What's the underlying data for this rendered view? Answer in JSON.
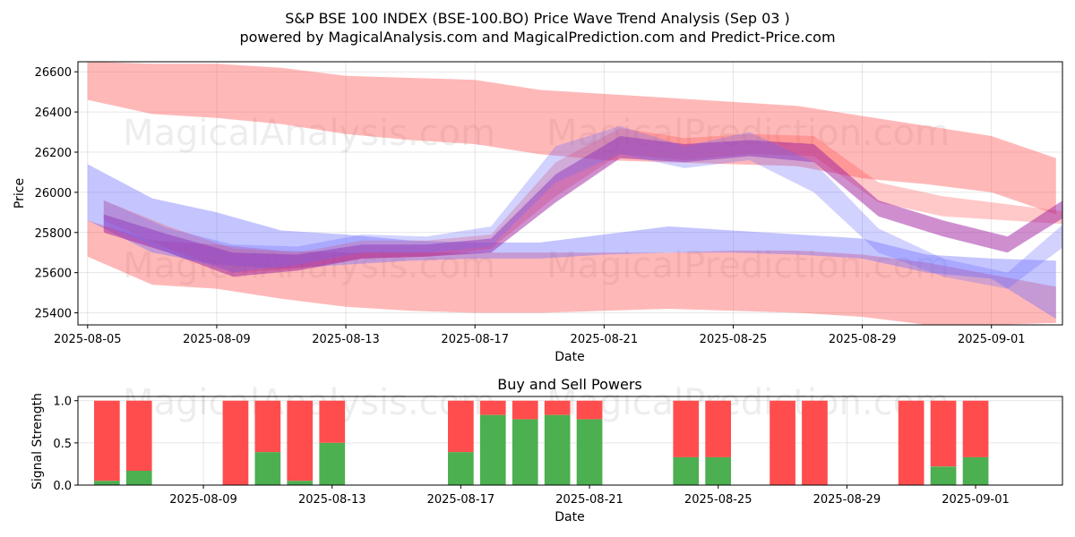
{
  "title_line1": "S&P BSE 100 INDEX (BSE-100.BO) Price Wave Trend Analysis (Sep 03 )",
  "title_line2": "powered by MagicalAnalysis.com and MagicalPrediction.com and Predict-Price.com",
  "watermarks": [
    "MagicalAnalysis.com",
    "MagicalPrediction.com"
  ],
  "colors": {
    "red": "#ff4d4d",
    "blue": "#6b6bff",
    "green": "#4caf50",
    "redband": "#ff9e9e"
  },
  "chart_data": [
    {
      "type": "area",
      "title": "",
      "xlabel": "Date",
      "ylabel": "Price",
      "ylim": [
        25340,
        26650
      ],
      "xlim": [
        -0.3,
        30.2
      ],
      "x_ticks": [
        0,
        4,
        8,
        12,
        16,
        20,
        24,
        28
      ],
      "x_tick_labels": [
        "2025-08-05",
        "2025-08-09",
        "2025-08-13",
        "2025-08-17",
        "2025-08-21",
        "2025-08-25",
        "2025-08-29",
        "2025-09-01"
      ],
      "y_ticks": [
        25400,
        25600,
        25800,
        26000,
        26200,
        26400,
        26600
      ],
      "grid": true,
      "series": [
        {
          "name": "upper red band",
          "color": "red",
          "opacity": 0.4,
          "x": [
            0,
            2,
            4,
            6,
            8,
            10,
            12,
            14,
            16,
            18,
            20,
            22,
            24,
            26,
            28,
            30
          ],
          "upper": [
            26650,
            26640,
            26640,
            26620,
            26580,
            26570,
            26560,
            26510,
            26490,
            26470,
            26450,
            26430,
            26380,
            26330,
            26280,
            26170
          ],
          "lower": [
            26460,
            26390,
            26370,
            26340,
            26290,
            26260,
            26240,
            26190,
            26160,
            26150,
            26140,
            26130,
            26070,
            26040,
            26000,
            25890
          ]
        },
        {
          "name": "lower red band",
          "color": "red",
          "opacity": 0.4,
          "x": [
            0,
            2,
            4,
            6,
            8,
            10,
            12,
            14,
            16,
            18,
            20,
            22,
            24,
            26,
            28,
            30
          ],
          "upper": [
            25860,
            25760,
            25740,
            25710,
            25700,
            25700,
            25700,
            25700,
            25700,
            25700,
            25710,
            25710,
            25690,
            25650,
            25590,
            25530
          ],
          "lower": [
            25680,
            25540,
            25520,
            25470,
            25430,
            25410,
            25400,
            25400,
            25410,
            25420,
            25410,
            25400,
            25380,
            25340,
            25340,
            25350
          ]
        },
        {
          "name": "lower blue band",
          "color": "blue",
          "opacity": 0.4,
          "x": [
            0,
            2,
            4,
            6,
            8,
            10,
            12,
            14,
            16,
            18,
            20,
            22,
            24,
            26,
            28,
            30
          ],
          "upper": [
            26140,
            25970,
            25900,
            25810,
            25790,
            25760,
            25750,
            25750,
            25790,
            25830,
            25810,
            25790,
            25770,
            25690,
            25670,
            25660
          ],
          "lower": [
            25860,
            25700,
            25640,
            25620,
            25640,
            25660,
            25670,
            25670,
            25690,
            25700,
            25700,
            25690,
            25670,
            25600,
            25570,
            25370
          ]
        },
        {
          "name": "wave red",
          "color": "red",
          "opacity": 0.3,
          "x": [
            0.5,
            2.5,
            4.5,
            6.5,
            8.5,
            10.5,
            12.5,
            14.5,
            16.5,
            18.5,
            20.5,
            22.5,
            24.5,
            26.5,
            28.5,
            30.5
          ],
          "upper": [
            25960,
            25830,
            25720,
            25700,
            25760,
            25760,
            25790,
            26150,
            26320,
            26270,
            26290,
            26280,
            26050,
            25980,
            25940,
            25900
          ],
          "lower": [
            25860,
            25720,
            25600,
            25620,
            25670,
            25680,
            25720,
            25980,
            26190,
            26160,
            26190,
            26180,
            25950,
            25880,
            25860,
            25840
          ]
        },
        {
          "name": "wave purple",
          "color": "purple",
          "opacity": 0.5,
          "x": [
            0.5,
            2.5,
            4.5,
            6.5,
            8.5,
            10.5,
            12.5,
            14.5,
            16.5,
            18.5,
            20.5,
            22.5,
            24.5,
            26.5,
            28.5,
            30.5
          ],
          "upper": [
            25890,
            25790,
            25700,
            25690,
            25740,
            25740,
            25770,
            26090,
            26280,
            26240,
            26260,
            26240,
            25960,
            25860,
            25780,
            25990
          ],
          "lower": [
            25800,
            25700,
            25580,
            25610,
            25670,
            25680,
            25700,
            25950,
            26170,
            26150,
            26180,
            26150,
            25880,
            25780,
            25700,
            25900
          ]
        },
        {
          "name": "wave blue",
          "color": "blue",
          "opacity": 0.3,
          "x": [
            0.5,
            2.5,
            4.5,
            6.5,
            8.5,
            10.5,
            12.5,
            14.5,
            16.5,
            18.5,
            20.5,
            22.5,
            24.5,
            26.5,
            28.5,
            30.5
          ],
          "upper": [
            25960,
            25820,
            25740,
            25730,
            25790,
            25780,
            25830,
            26230,
            26330,
            26230,
            26300,
            26150,
            25820,
            25670,
            25600,
            25880
          ],
          "lower": [
            25840,
            25700,
            25600,
            25640,
            25700,
            25700,
            25730,
            26050,
            26190,
            26120,
            26160,
            26000,
            25700,
            25580,
            25520,
            25760
          ]
        }
      ]
    },
    {
      "type": "bar",
      "title": "Buy and Sell Powers",
      "xlabel": "Date",
      "ylabel": "Signal Strength",
      "ylim": [
        0,
        1.05
      ],
      "y_ticks": [
        0.0,
        0.5,
        1.0
      ],
      "y_tick_labels": [
        "0.0",
        "0.5",
        "1.0"
      ],
      "x_ticks": [
        4,
        8,
        12,
        16,
        20,
        24,
        28
      ],
      "x_tick_labels": [
        "2025-08-09",
        "2025-08-13",
        "2025-08-17",
        "2025-08-21",
        "2025-08-25",
        "2025-08-29",
        "2025-09-01"
      ],
      "grid": true,
      "bar_x": [
        1,
        2,
        5,
        6,
        7,
        8,
        12,
        13,
        14,
        15,
        16,
        19,
        20,
        22,
        23,
        26,
        27,
        28
      ],
      "buy": [
        0.05,
        0.17,
        0.0,
        0.39,
        0.05,
        0.5,
        0.39,
        0.83,
        0.78,
        0.83,
        0.78,
        0.33,
        0.33,
        0.0,
        0.0,
        0.0,
        0.22,
        0.33
      ],
      "total": 1.0
    }
  ]
}
